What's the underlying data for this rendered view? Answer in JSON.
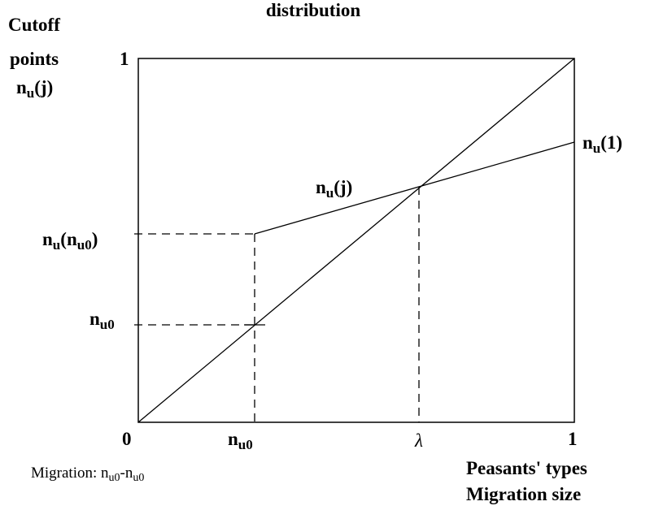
{
  "title_fragment": "distribution",
  "y_axis_label": {
    "line1": "Cutoff",
    "line2": "points",
    "line3": {
      "base": "n",
      "sub": "u",
      "rest": "(j)"
    }
  },
  "y_top": "1",
  "curve_end_label": {
    "base": "n",
    "sub": "u",
    "rest": "(1)"
  },
  "curve_label": {
    "base": "n",
    "sub": "u",
    "rest": "(j)"
  },
  "y_label_upper": {
    "base": "n",
    "sub": "u",
    "paren_open": "(",
    "inner_base": "n",
    "inner_sub": "u0",
    "paren_close": ")"
  },
  "y_label_lower": {
    "base": "n",
    "sub": "u0"
  },
  "x_origin": "0",
  "x_label_1": {
    "base": "n",
    "sub": "u0"
  },
  "x_label_2": "λ",
  "x_end": "1",
  "note": {
    "text": "Migration: n",
    "sub1": "u0",
    "mid": "-n",
    "sub2": "u0"
  },
  "x_axis_label": {
    "line1": "Peasants' types",
    "line2": "Migration size"
  }
}
